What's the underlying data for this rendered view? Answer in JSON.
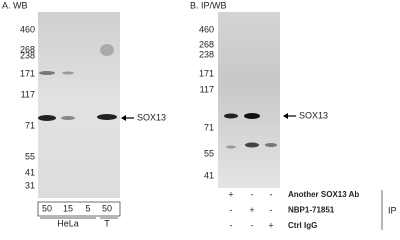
{
  "panel_a": {
    "title": "A. WB",
    "markers": [
      "460",
      "268",
      "238",
      "171",
      "117",
      "71",
      "55",
      "41",
      "31"
    ],
    "lanes": [
      "50",
      "15",
      "5",
      "50"
    ],
    "samples": [
      "HeLa",
      "T"
    ],
    "target": "SOX13"
  },
  "panel_b": {
    "title": "B. IP/WB",
    "markers": [
      "460",
      "268",
      "238",
      "171",
      "117",
      "71",
      "55",
      "41"
    ],
    "target": "SOX13",
    "rows": [
      {
        "signs": [
          "+",
          "-",
          "-"
        ],
        "label": "Another SOX13 Ab"
      },
      {
        "signs": [
          "-",
          "+",
          "-"
        ],
        "label": "NBP1-71851"
      },
      {
        "signs": [
          "-",
          "-",
          "+"
        ],
        "label": "Ctrl IgG"
      }
    ],
    "group": "IP"
  }
}
